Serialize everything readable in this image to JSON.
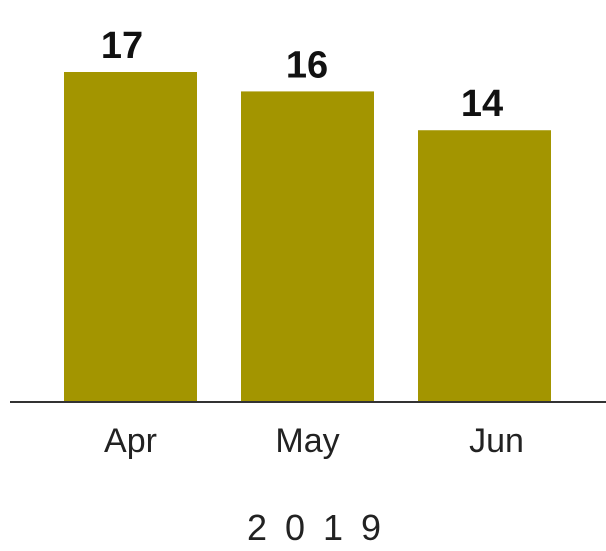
{
  "chart_data": {
    "type": "bar",
    "categories": [
      "Apr",
      "May",
      "Jun"
    ],
    "values": [
      17,
      16,
      14
    ],
    "data_labels": [
      "17",
      "16",
      "14"
    ],
    "group_label": "2019",
    "title": "",
    "xlabel": "",
    "ylabel": "",
    "ylim": [
      0,
      17
    ],
    "grid": false,
    "legend": "none",
    "colors": {
      "bar": "#a39500",
      "axis": "#333333"
    }
  }
}
